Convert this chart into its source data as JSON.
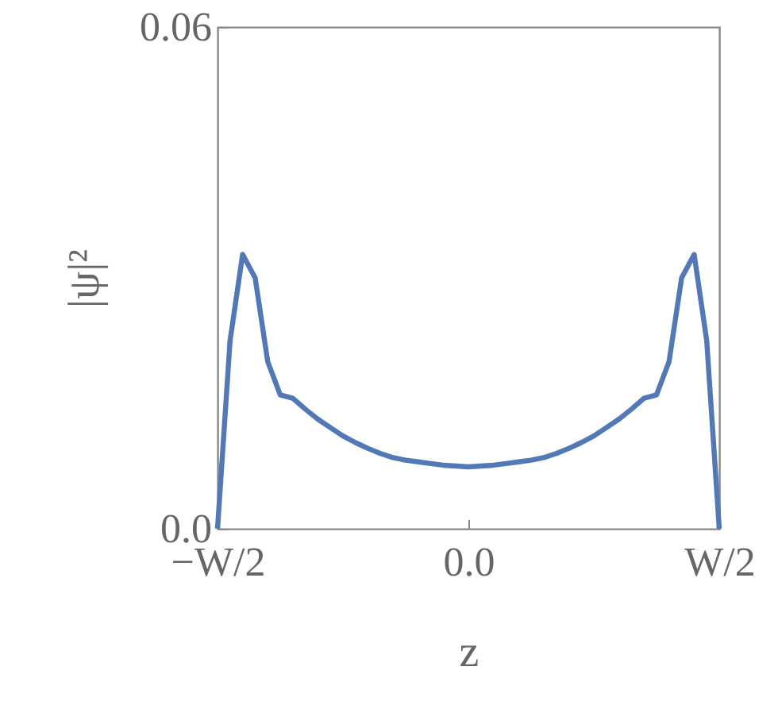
{
  "chart_data": {
    "type": "line",
    "xlabel": "z",
    "ylabel": "|ψ|²",
    "categories": [
      "−W/2",
      null,
      null,
      null,
      null,
      null,
      null,
      null,
      null,
      null,
      null,
      null,
      null,
      null,
      null,
      null,
      null,
      null,
      null,
      null,
      "0.0",
      null,
      null,
      null,
      null,
      null,
      null,
      null,
      null,
      null,
      null,
      null,
      null,
      null,
      null,
      null,
      null,
      null,
      null,
      null,
      "W/2"
    ],
    "series": [
      {
        "color": "#5279b5",
        "values": [
          0,
          0.0225,
          0.0328,
          0.03,
          0.02,
          0.016,
          0.0156,
          0.0143,
          0.0131,
          0.0121,
          0.0111,
          0.0103,
          0.0096,
          0.009,
          0.0085,
          0.0082,
          0.008,
          0.0078,
          0.0076,
          0.0075,
          0.0074,
          0.0075,
          0.0076,
          0.0078,
          0.008,
          0.0082,
          0.0085,
          0.009,
          0.0096,
          0.0103,
          0.0111,
          0.0121,
          0.0131,
          0.0143,
          0.0156,
          0.016,
          0.02,
          0.03,
          0.0328,
          0.0225,
          0
        ]
      }
    ],
    "ylim": [
      0,
      0.06
    ],
    "yticks": [
      {
        "value": 0,
        "label": "0.0"
      },
      0.06
    ],
    "grid": false,
    "marker": "none",
    "line_style": "solid"
  }
}
